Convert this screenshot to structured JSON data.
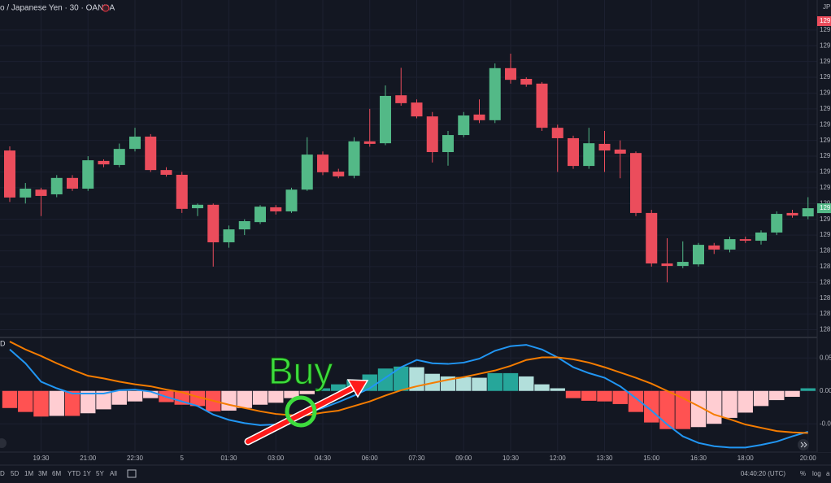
{
  "header": {
    "title": "o / Japanese Yen · 30 · OANDA",
    "symbol_badge": "JP"
  },
  "chart_data": [
    {
      "type": "candlestick",
      "categories": [
        null,
        null,
        "19:30",
        null,
        null,
        "21:00",
        null,
        null,
        "22:30",
        null,
        null,
        "5",
        null,
        null,
        "01:30",
        null,
        null,
        "03:00",
        null,
        null,
        "04:30",
        null,
        null,
        "06:00",
        null,
        null,
        "07:30",
        null,
        null,
        "09:00",
        null,
        null,
        "10:30",
        null,
        null,
        "12:00",
        null,
        null,
        "13:30",
        null,
        null,
        "15:00",
        null,
        null,
        "16:30",
        null,
        null,
        "18:00",
        null,
        null,
        null,
        "20:00"
      ],
      "open": [
        129.268,
        129.119,
        129.144,
        129.129,
        129.181,
        129.147,
        129.235,
        129.222,
        129.273,
        129.312,
        129.206,
        129.191,
        129.085,
        129.096,
        128.977,
        129.018,
        129.041,
        129.088,
        129.075,
        129.144,
        129.255,
        129.201,
        129.188,
        129.297,
        129.291,
        129.443,
        129.42,
        129.376,
        129.263,
        129.317,
        129.382,
        129.364,
        129.529,
        129.495,
        129.48,
        129.34,
        129.307,
        129.219,
        129.289,
        129.271,
        129.26,
        129.07,
        128.91,
        128.902,
        128.907,
        128.967,
        128.954,
        128.987,
        128.982,
        129.008,
        129.07,
        129.059
      ],
      "high": [
        129.281,
        129.165,
        129.15,
        129.19,
        129.19,
        129.25,
        129.24,
        129.29,
        129.34,
        129.32,
        129.215,
        129.2,
        129.1,
        129.1,
        129.03,
        129.05,
        129.095,
        129.095,
        129.15,
        129.31,
        129.265,
        129.21,
        129.31,
        129.4,
        129.474,
        129.53,
        129.43,
        129.39,
        129.33,
        129.39,
        129.43,
        129.544,
        129.575,
        129.5,
        129.485,
        129.35,
        129.315,
        129.34,
        129.33,
        129.3,
        129.265,
        129.08,
        128.99,
        128.98,
        128.975,
        128.975,
        128.995,
        128.995,
        129.015,
        129.075,
        129.08,
        129.12
      ],
      "low": [
        129.105,
        129.1,
        129.06,
        129.12,
        129.14,
        129.14,
        129.215,
        129.215,
        129.265,
        129.2,
        129.185,
        129.07,
        129.06,
        128.9,
        128.96,
        129.0,
        129.035,
        129.065,
        129.07,
        129.14,
        129.19,
        129.18,
        129.18,
        129.28,
        129.285,
        129.41,
        129.37,
        129.23,
        129.22,
        129.31,
        129.355,
        129.355,
        129.48,
        129.47,
        129.33,
        129.2,
        129.21,
        129.21,
        129.2,
        129.18,
        129.06,
        128.9,
        128.85,
        128.895,
        128.9,
        128.94,
        128.945,
        128.975,
        128.97,
        129.0,
        129.055,
        129.05
      ],
      "close": [
        129.119,
        129.147,
        129.124,
        129.181,
        129.147,
        129.237,
        129.224,
        129.273,
        129.312,
        129.206,
        129.191,
        129.083,
        129.096,
        128.977,
        129.018,
        129.044,
        129.09,
        129.075,
        129.144,
        129.255,
        129.199,
        129.186,
        129.297,
        129.289,
        129.441,
        129.418,
        129.376,
        129.263,
        129.317,
        129.379,
        129.364,
        129.529,
        129.492,
        129.477,
        129.34,
        129.307,
        129.219,
        129.291,
        129.268,
        129.258,
        129.07,
        128.91,
        128.902,
        128.915,
        128.969,
        128.954,
        128.987,
        128.982,
        129.008,
        129.067,
        129.062,
        129.085
      ],
      "up_color": "#53b987",
      "down_color": "#eb4d5c",
      "ylim": [
        128.678,
        129.745
      ],
      "yticks": [
        {
          "value": 128.7,
          "label": "128."
        },
        {
          "value": 128.75,
          "label": "128."
        },
        {
          "value": 128.8,
          "label": "128."
        },
        {
          "value": 128.85,
          "label": "128."
        },
        {
          "value": 128.9,
          "label": "128."
        },
        {
          "value": 128.95,
          "label": "128."
        },
        {
          "value": 129.0,
          "label": "129."
        },
        {
          "value": 129.05,
          "label": "129."
        },
        {
          "value": 129.1,
          "label": "129."
        },
        {
          "value": 129.15,
          "label": "129."
        },
        {
          "value": 129.2,
          "label": "129."
        },
        {
          "value": 129.25,
          "label": "129."
        },
        {
          "value": 129.3,
          "label": "129."
        },
        {
          "value": 129.35,
          "label": "129."
        },
        {
          "value": 129.4,
          "label": "129."
        },
        {
          "value": 129.45,
          "label": "129."
        },
        {
          "value": 129.5,
          "label": "129."
        },
        {
          "value": 129.55,
          "label": "129."
        },
        {
          "value": 129.6,
          "label": "129."
        },
        {
          "value": 129.65,
          "label": "129."
        }
      ],
      "price_tags": [
        {
          "value": 129.678,
          "label": "129.",
          "color": "#eb4d5c"
        },
        {
          "value": 129.085,
          "label": "129.",
          "color": "#53b987"
        }
      ],
      "grid": true
    },
    {
      "type": "macd",
      "title": "D",
      "histogram": {
        "values": [
          -0.026,
          -0.032,
          -0.039,
          -0.038,
          -0.038,
          -0.034,
          -0.028,
          -0.021,
          -0.016,
          -0.011,
          -0.017,
          -0.021,
          -0.023,
          -0.031,
          -0.03,
          -0.026,
          -0.021,
          -0.018,
          -0.011,
          -0.005,
          0.004,
          0.01,
          0.017,
          0.025,
          0.034,
          0.037,
          0.036,
          0.026,
          0.022,
          0.021,
          0.02,
          0.027,
          0.027,
          0.022,
          0.01,
          0.004,
          -0.011,
          -0.015,
          -0.016,
          -0.02,
          -0.032,
          -0.048,
          -0.058,
          -0.058,
          -0.055,
          -0.05,
          -0.041,
          -0.033,
          -0.023,
          -0.014,
          -0.009,
          0.004
        ],
        "grow_above": "#26a69a",
        "fall_above": "#b2dfdb",
        "grow_below": "#ffcdd2",
        "fall_below": "#ff5252"
      },
      "macd": {
        "color": "#2196f3",
        "values": [
          0.063,
          0.042,
          0.014,
          0.004,
          -0.004,
          -0.004,
          -0.004,
          0.001,
          0.002,
          -0.001,
          -0.009,
          -0.016,
          -0.023,
          -0.036,
          -0.044,
          -0.049,
          -0.052,
          -0.051,
          -0.042,
          -0.033,
          -0.026,
          -0.017,
          -0.007,
          0.004,
          0.02,
          0.036,
          0.047,
          0.042,
          0.041,
          0.043,
          0.049,
          0.061,
          0.068,
          0.07,
          0.063,
          0.051,
          0.036,
          0.027,
          0.02,
          0.007,
          -0.011,
          -0.03,
          -0.051,
          -0.069,
          -0.079,
          -0.084,
          -0.086,
          -0.086,
          -0.082,
          -0.077,
          -0.069,
          -0.062
        ]
      },
      "signal": {
        "color": "#f57c00",
        "values": [
          0.075,
          0.063,
          0.053,
          0.042,
          0.032,
          0.023,
          0.019,
          0.014,
          0.01,
          0.007,
          0.002,
          -0.002,
          -0.009,
          -0.015,
          -0.021,
          -0.026,
          -0.031,
          -0.035,
          -0.037,
          -0.037,
          -0.033,
          -0.03,
          -0.023,
          -0.016,
          -0.007,
          0.001,
          0.007,
          0.012,
          0.017,
          0.021,
          0.026,
          0.031,
          0.038,
          0.047,
          0.051,
          0.051,
          0.048,
          0.043,
          0.036,
          0.028,
          0.02,
          0.011,
          0.0,
          -0.011,
          -0.023,
          -0.036,
          -0.043,
          -0.051,
          -0.056,
          -0.061,
          -0.063,
          -0.064
        ]
      },
      "ylim": [
        -0.093,
        0.08
      ],
      "yticks": [
        {
          "value": 0.05,
          "label": "0.05"
        },
        {
          "value": 0.0,
          "label": "0.00"
        },
        {
          "value": -0.05,
          "label": "-0.0"
        }
      ],
      "annotation": {
        "text": "Buy",
        "color": "#3ddc3d",
        "arrow_color": "#ff1a1a"
      },
      "grid": true
    }
  ],
  "toolbar": {
    "ranges": [
      "D",
      "5D",
      "1M",
      "3M",
      "6M",
      "YTD",
      "1Y",
      "5Y",
      "All"
    ],
    "clock": "04:40:20 (UTC)",
    "percent": "%",
    "log": "log",
    "auto": "a"
  }
}
